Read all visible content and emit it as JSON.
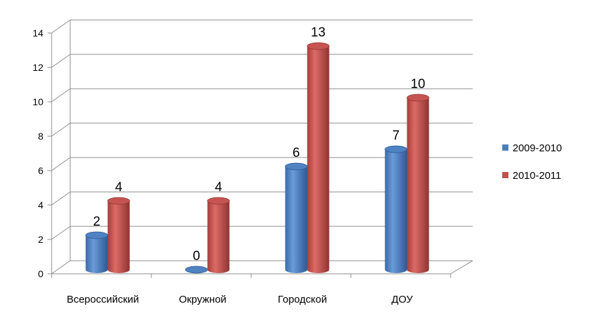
{
  "chart_data": {
    "type": "bar",
    "style": "3d-cylinder",
    "categories": [
      "Всероссийский",
      "Окружной",
      "Городской",
      "ДОУ"
    ],
    "series": [
      {
        "name": "2009-2010",
        "color": "#4a7ebb",
        "values": [
          2,
          0,
          6,
          7
        ]
      },
      {
        "name": "2010-2011",
        "color": "#c0504d",
        "values": [
          4,
          4,
          13,
          10
        ]
      }
    ],
    "ylim": [
      0,
      14
    ],
    "yticks": [
      "0",
      "2",
      "4",
      "6",
      "8",
      "10",
      "12",
      "14"
    ],
    "data_labels": true,
    "grid": true,
    "legend_position": "right"
  }
}
